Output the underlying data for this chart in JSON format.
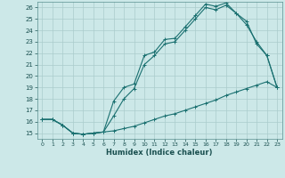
{
  "xlabel": "Humidex (Indice chaleur)",
  "bg_color": "#cce8e8",
  "grid_color": "#aacccc",
  "line_color": "#1a7070",
  "xlim": [
    -0.5,
    23.5
  ],
  "ylim": [
    14.5,
    26.5
  ],
  "xticks": [
    0,
    1,
    2,
    3,
    4,
    5,
    6,
    7,
    8,
    9,
    10,
    11,
    12,
    13,
    14,
    15,
    16,
    17,
    18,
    19,
    20,
    21,
    22,
    23
  ],
  "yticks": [
    15,
    16,
    17,
    18,
    19,
    20,
    21,
    22,
    23,
    24,
    25,
    26
  ],
  "line1_x": [
    0,
    1,
    2,
    3,
    4,
    5,
    6,
    7,
    8,
    9,
    10,
    11,
    12,
    13,
    14,
    15,
    16,
    17,
    18,
    19,
    20,
    21,
    22,
    23
  ],
  "line1_y": [
    16.2,
    16.2,
    15.7,
    15.0,
    14.9,
    15.0,
    15.1,
    17.8,
    19.0,
    19.3,
    21.8,
    22.1,
    23.2,
    23.3,
    24.3,
    25.3,
    26.3,
    26.1,
    26.4,
    25.5,
    24.8,
    22.8,
    21.8,
    19.0
  ],
  "line2_x": [
    0,
    1,
    2,
    3,
    4,
    5,
    6,
    7,
    8,
    9,
    10,
    11,
    12,
    13,
    14,
    15,
    16,
    17,
    18,
    19,
    20,
    21,
    22,
    23
  ],
  "line2_y": [
    16.2,
    16.2,
    15.7,
    15.0,
    14.9,
    15.0,
    15.1,
    15.2,
    15.4,
    15.6,
    15.9,
    16.2,
    16.5,
    16.7,
    17.0,
    17.3,
    17.6,
    17.9,
    18.3,
    18.6,
    18.9,
    19.2,
    19.5,
    19.0
  ],
  "line3_x": [
    0,
    1,
    2,
    3,
    4,
    5,
    6,
    7,
    8,
    9,
    10,
    11,
    12,
    13,
    14,
    15,
    16,
    17,
    18,
    19,
    20,
    21,
    22,
    23
  ],
  "line3_y": [
    16.2,
    16.2,
    15.7,
    15.0,
    14.9,
    15.0,
    15.1,
    16.5,
    18.0,
    18.9,
    21.0,
    21.8,
    22.8,
    23.0,
    24.0,
    25.0,
    26.0,
    25.8,
    26.2,
    25.5,
    24.5,
    23.0,
    21.8,
    19.0
  ]
}
